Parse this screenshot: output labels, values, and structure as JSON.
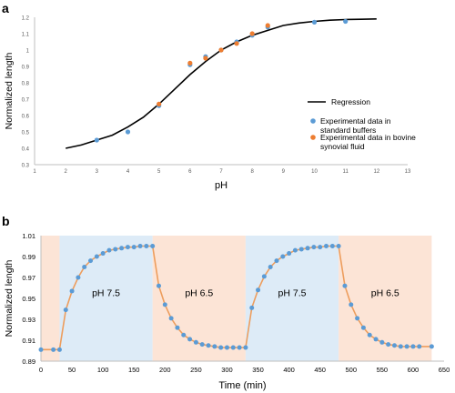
{
  "panel_a": {
    "label": "a"
  },
  "panel_b": {
    "label": "b"
  },
  "chart_data": [
    {
      "type": "scatter",
      "panel": "a",
      "xlabel": "pH",
      "ylabel": "Normalized length",
      "xlim": [
        1,
        13
      ],
      "ylim": [
        0.3,
        1.2
      ],
      "x_ticks": [
        "1",
        "2",
        "3",
        "4",
        "5",
        "6",
        "7",
        "8",
        "9",
        "10",
        "11",
        "12",
        "13"
      ],
      "y_ticks": [
        "0.3",
        "0.4",
        "0.5",
        "0.6",
        "0.7",
        "0.8",
        "0.9",
        "1",
        "1.1",
        "1.2"
      ],
      "grid": false,
      "legend_position": "right",
      "regression": {
        "name": "Regression",
        "color": "#000000",
        "x": [
          2,
          2.5,
          3,
          3.5,
          4,
          4.5,
          5,
          5.5,
          6,
          6.5,
          7,
          7.5,
          8,
          8.5,
          9,
          9.5,
          10,
          10.5,
          11,
          11.5,
          12
        ],
        "y": [
          0.4,
          0.42,
          0.45,
          0.48,
          0.53,
          0.59,
          0.67,
          0.76,
          0.85,
          0.93,
          1.0,
          1.05,
          1.09,
          1.12,
          1.15,
          1.165,
          1.175,
          1.182,
          1.186,
          1.188,
          1.19
        ]
      },
      "series": [
        {
          "name": "Experimental data in standard buffers",
          "color": "#5b9bd5",
          "points": [
            [
              3,
              0.45
            ],
            [
              4,
              0.5
            ],
            [
              5,
              0.66
            ],
            [
              6,
              0.91
            ],
            [
              6.5,
              0.96
            ],
            [
              7,
              1.0
            ],
            [
              7.5,
              1.05
            ],
            [
              8,
              1.09
            ],
            [
              8.5,
              1.14
            ],
            [
              10,
              1.17
            ],
            [
              11,
              1.175
            ]
          ]
        },
        {
          "name": "Experimental data in bovine synovial fluid",
          "color": "#ed7d31",
          "points": [
            [
              5,
              0.67
            ],
            [
              6,
              0.92
            ],
            [
              6.5,
              0.95
            ],
            [
              7,
              1.0
            ],
            [
              7.5,
              1.04
            ],
            [
              8,
              1.1
            ],
            [
              8.5,
              1.15
            ]
          ]
        }
      ]
    },
    {
      "type": "line",
      "panel": "b",
      "xlabel": "Time (min)",
      "ylabel": "Normalized length",
      "xlim": [
        0,
        650
      ],
      "ylim": [
        0.89,
        1.01
      ],
      "x_ticks": [
        "0",
        "50",
        "100",
        "150",
        "200",
        "250",
        "300",
        "350",
        "400",
        "450",
        "500",
        "550",
        "600",
        "650"
      ],
      "y_ticks": [
        "0.89",
        "0.91",
        "0.93",
        "0.95",
        "0.97",
        "0.99",
        "1.01"
      ],
      "grid": false,
      "regions": [
        {
          "start": 0,
          "end": 30,
          "label": "",
          "color": "#fce4d6"
        },
        {
          "start": 30,
          "end": 180,
          "label": "pH 7.5",
          "color": "#ddebf7"
        },
        {
          "start": 180,
          "end": 330,
          "label": "pH 6.5",
          "color": "#fce4d6"
        },
        {
          "start": 330,
          "end": 480,
          "label": "pH 7.5",
          "color": "#ddebf7"
        },
        {
          "start": 480,
          "end": 630,
          "label": "pH 6.5",
          "color": "#fce4d6"
        }
      ],
      "series": [
        {
          "name": "",
          "marker_color": "#5b9bd5",
          "line_color": "#ed9d5d",
          "points": [
            [
              0,
              0.901
            ],
            [
              20,
              0.901
            ],
            [
              30,
              0.901
            ],
            [
              40,
              0.939
            ],
            [
              50,
              0.957
            ],
            [
              60,
              0.97
            ],
            [
              70,
              0.98
            ],
            [
              80,
              0.986
            ],
            [
              90,
              0.99
            ],
            [
              100,
              0.993
            ],
            [
              110,
              0.996
            ],
            [
              120,
              0.997
            ],
            [
              130,
              0.998
            ],
            [
              140,
              0.999
            ],
            [
              150,
              0.999
            ],
            [
              160,
              1.0
            ],
            [
              170,
              1.0
            ],
            [
              180,
              1.0
            ],
            [
              190,
              0.962
            ],
            [
              200,
              0.944
            ],
            [
              210,
              0.931
            ],
            [
              220,
              0.922
            ],
            [
              230,
              0.915
            ],
            [
              240,
              0.911
            ],
            [
              250,
              0.908
            ],
            [
              260,
              0.906
            ],
            [
              270,
              0.905
            ],
            [
              280,
              0.904
            ],
            [
              290,
              0.903
            ],
            [
              300,
              0.903
            ],
            [
              310,
              0.903
            ],
            [
              320,
              0.903
            ],
            [
              330,
              0.903
            ],
            [
              340,
              0.941
            ],
            [
              350,
              0.958
            ],
            [
              360,
              0.971
            ],
            [
              370,
              0.98
            ],
            [
              380,
              0.986
            ],
            [
              390,
              0.99
            ],
            [
              400,
              0.993
            ],
            [
              410,
              0.996
            ],
            [
              420,
              0.997
            ],
            [
              430,
              0.998
            ],
            [
              440,
              0.999
            ],
            [
              450,
              0.999
            ],
            [
              460,
              1.0
            ],
            [
              470,
              1.0
            ],
            [
              480,
              1.0
            ],
            [
              490,
              0.962
            ],
            [
              500,
              0.944
            ],
            [
              510,
              0.931
            ],
            [
              520,
              0.922
            ],
            [
              530,
              0.915
            ],
            [
              540,
              0.911
            ],
            [
              550,
              0.908
            ],
            [
              560,
              0.906
            ],
            [
              570,
              0.905
            ],
            [
              580,
              0.904
            ],
            [
              590,
              0.904
            ],
            [
              600,
              0.904
            ],
            [
              610,
              0.904
            ],
            [
              630,
              0.904
            ]
          ]
        }
      ]
    }
  ]
}
